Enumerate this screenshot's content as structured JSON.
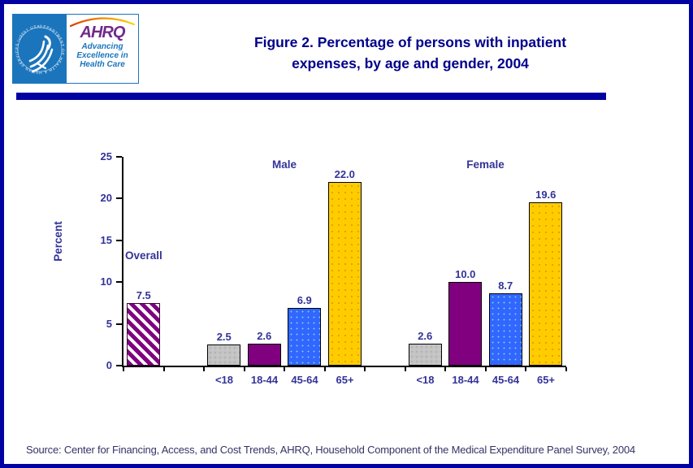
{
  "title": {
    "line1": "Figure 2. Percentage of persons with inpatient",
    "line2": "expenses, by age and gender, 2004"
  },
  "logo": {
    "hhs_seal_text": "DEPARTMENT OF HEALTH & HUMAN SERVICES · USA ·",
    "ahrq_acronym": "AHRQ",
    "tagline": [
      "Advancing",
      "Excellence in",
      "Health Care"
    ]
  },
  "chart_data": {
    "type": "bar",
    "title": "Percentage of persons with inpatient expenses, by age and gender, 2004",
    "ylabel": "Percent",
    "xlabel": "",
    "ylim": [
      0,
      25
    ],
    "yticks": [
      0,
      5,
      10,
      15,
      20,
      25
    ],
    "grid": false,
    "legend": "none",
    "groups": [
      {
        "label": "Overall",
        "bars": [
          {
            "category": "Overall",
            "value": 7.5,
            "value_label": "7.5",
            "style": "hatch"
          }
        ]
      },
      {
        "label": "Male",
        "bars": [
          {
            "category": "<18",
            "value": 2.5,
            "value_label": "2.5",
            "style": "gray"
          },
          {
            "category": "18-44",
            "value": 2.6,
            "value_label": "2.6",
            "style": "purple"
          },
          {
            "category": "45-64",
            "value": 6.9,
            "value_label": "6.9",
            "style": "blue"
          },
          {
            "category": "65+",
            "value": 22.0,
            "value_label": "22.0",
            "style": "gold"
          }
        ]
      },
      {
        "label": "Female",
        "bars": [
          {
            "category": "<18",
            "value": 2.6,
            "value_label": "2.6",
            "style": "gray"
          },
          {
            "category": "18-44",
            "value": 10.0,
            "value_label": "10.0",
            "style": "purple"
          },
          {
            "category": "45-64",
            "value": 8.7,
            "value_label": "8.7",
            "style": "blue"
          },
          {
            "category": "65+",
            "value": 19.6,
            "value_label": "19.6",
            "style": "gold"
          }
        ]
      }
    ]
  },
  "source": {
    "text": "Source: Center for Financing, Access, and Cost Trends, AHRQ, Household Component of the Medical Expenditure Panel Survey, 2004"
  },
  "colors": {
    "page_border": "#0202A2",
    "title_text": "#00008B",
    "divider": "#0202A2",
    "label_text": "#333399",
    "axis_line": "#000000",
    "source_text": "#333366",
    "bar_gray": "#C3C3C3",
    "bar_purple": "#800080",
    "bar_blue": "#3366FF",
    "bar_gold": "#FFCC00",
    "hatch_purple": "#800080",
    "logo_blue": "#1B75BC",
    "logo_purple": "#722A8A"
  }
}
